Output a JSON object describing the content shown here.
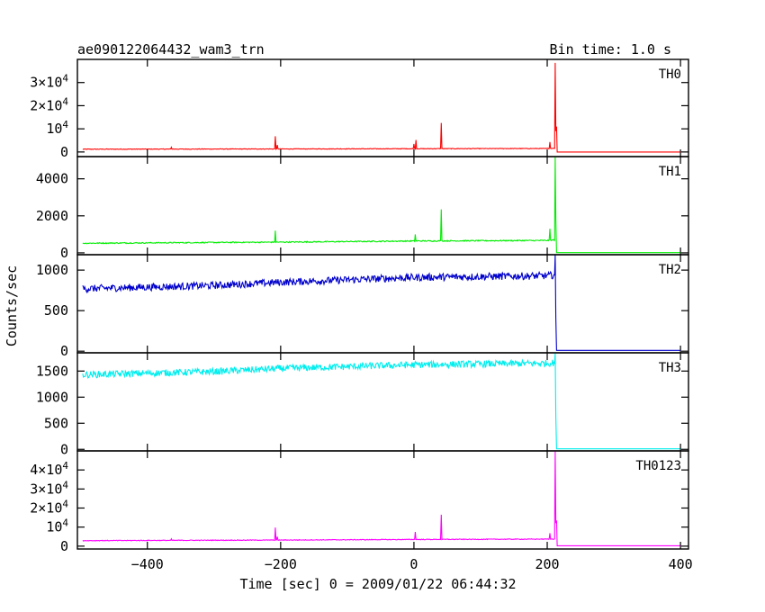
{
  "header": {
    "left_title": "ae090122064432_wam3_trn",
    "right_title": "Bin time: 1.0 s"
  },
  "chart_data": {
    "type": "line",
    "xlabel": "Time [sec] 0 = 2009/01/22 06:44:32",
    "ylabel": "Counts/sec",
    "xlim": [
      -505,
      412
    ],
    "x_ticks": [
      -400,
      -200,
      0,
      200,
      400
    ],
    "x_tick_labels": [
      "−400",
      "−200",
      "0",
      "200",
      "400"
    ],
    "grid": false,
    "panels": [
      {
        "name": "TH0",
        "color": "#ff0000",
        "ylim": [
          -2000,
          40000
        ],
        "y_ticks": [
          0,
          10000,
          20000,
          30000
        ],
        "y_tick_labels": [
          {
            "base": "0",
            "exp": ""
          },
          {
            "base": "",
            "exp": "4"
          },
          {
            "base": "2×10",
            "exp": "4"
          },
          {
            "base": "3×10",
            "exp": "4"
          }
        ],
        "baseline": [
          [
            -497,
            1200
          ],
          [
            -200,
            1300
          ],
          [
            0,
            1400
          ],
          [
            200,
            1500
          ],
          [
            212,
            1600
          ],
          [
            213,
            0
          ],
          [
            400,
            0
          ]
        ],
        "noise": 120,
        "spikes": [
          [
            -364,
            2000
          ],
          [
            -208,
            6800
          ],
          [
            -205,
            3000
          ],
          [
            0,
            3500
          ],
          [
            3,
            5200
          ],
          [
            41,
            12500
          ],
          [
            204,
            4300
          ],
          [
            212,
            38500
          ],
          [
            213,
            9000
          ],
          [
            214,
            11000
          ]
        ]
      },
      {
        "name": "TH1",
        "color": "#00ee00",
        "ylim": [
          -100,
          5200
        ],
        "y_ticks": [
          0,
          2000,
          4000
        ],
        "y_tick_labels": [
          {
            "base": "0",
            "exp": ""
          },
          {
            "base": "2000",
            "exp": ""
          },
          {
            "base": "4000",
            "exp": ""
          }
        ],
        "baseline": [
          [
            -497,
            520
          ],
          [
            -200,
            580
          ],
          [
            0,
            640
          ],
          [
            200,
            670
          ],
          [
            212,
            700
          ],
          [
            213,
            10
          ],
          [
            400,
            10
          ]
        ],
        "noise": 30,
        "spikes": [
          [
            -208,
            1200
          ],
          [
            2,
            1000
          ],
          [
            41,
            2350
          ],
          [
            204,
            1300
          ],
          [
            212,
            5200
          ],
          [
            213,
            1800
          ]
        ]
      },
      {
        "name": "TH2",
        "color": "#0000cc",
        "ylim": [
          -20,
          1190
        ],
        "y_ticks": [
          0,
          500,
          1000
        ],
        "y_tick_labels": [
          {
            "base": "0",
            "exp": ""
          },
          {
            "base": "500",
            "exp": ""
          },
          {
            "base": "1000",
            "exp": ""
          }
        ],
        "baseline": [
          [
            -497,
            770
          ],
          [
            -300,
            810
          ],
          [
            -200,
            850
          ],
          [
            0,
            910
          ],
          [
            200,
            930
          ],
          [
            212,
            940
          ],
          [
            213,
            400
          ],
          [
            214,
            10
          ],
          [
            400,
            10
          ]
        ],
        "noise": 45,
        "spikes": [
          [
            212,
            1190
          ]
        ]
      },
      {
        "name": "TH3",
        "color": "#00eeee",
        "ylim": [
          -30,
          1850
        ],
        "y_ticks": [
          0,
          500,
          1000,
          1500
        ],
        "y_tick_labels": [
          {
            "base": "0",
            "exp": ""
          },
          {
            "base": "500",
            "exp": ""
          },
          {
            "base": "1000",
            "exp": ""
          },
          {
            "base": "1500",
            "exp": ""
          }
        ],
        "baseline": [
          [
            -497,
            1430
          ],
          [
            -300,
            1490
          ],
          [
            -200,
            1550
          ],
          [
            0,
            1620
          ],
          [
            200,
            1650
          ],
          [
            212,
            1660
          ],
          [
            213,
            650
          ],
          [
            214,
            10
          ],
          [
            400,
            10
          ]
        ],
        "noise": 65,
        "spikes": [
          [
            212,
            1850
          ]
        ]
      },
      {
        "name": "TH0123",
        "color": "#ff00ff",
        "ylim": [
          -1500,
          50000
        ],
        "y_ticks": [
          0,
          10000,
          20000,
          30000,
          40000
        ],
        "y_tick_labels": [
          {
            "base": "0",
            "exp": ""
          },
          {
            "base": "",
            "exp": "4"
          },
          {
            "base": "2×10",
            "exp": "4"
          },
          {
            "base": "3×10",
            "exp": "4"
          },
          {
            "base": "4×10",
            "exp": "4"
          }
        ],
        "baseline": [
          [
            -497,
            2900
          ],
          [
            -200,
            3200
          ],
          [
            0,
            3500
          ],
          [
            200,
            3700
          ],
          [
            212,
            3800
          ],
          [
            213,
            200
          ],
          [
            400,
            200
          ]
        ],
        "noise": 180,
        "spikes": [
          [
            -364,
            3800
          ],
          [
            -208,
            9800
          ],
          [
            -205,
            5000
          ],
          [
            2,
            7500
          ],
          [
            41,
            16500
          ],
          [
            204,
            6800
          ],
          [
            212,
            50000
          ],
          [
            213,
            12000
          ],
          [
            214,
            13500
          ]
        ]
      }
    ]
  }
}
